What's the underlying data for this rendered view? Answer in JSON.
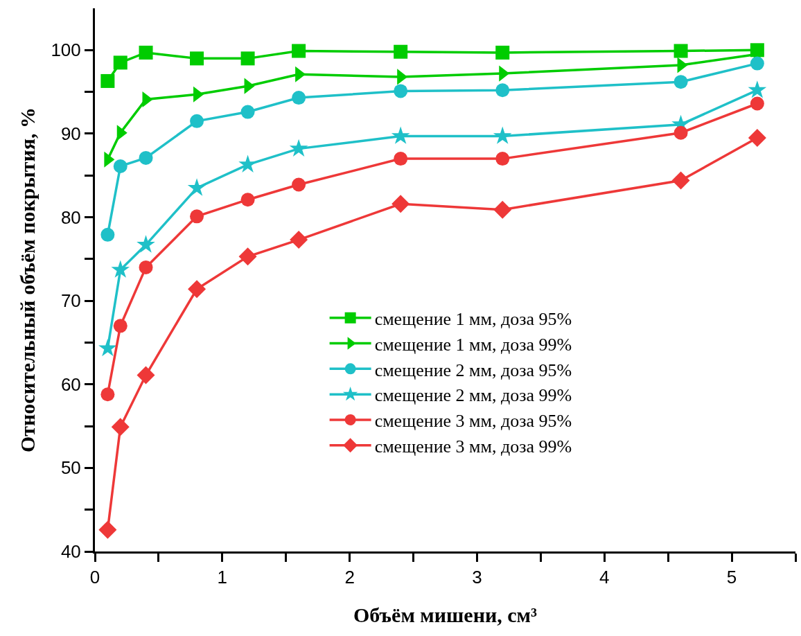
{
  "chart_data": {
    "type": "line",
    "xlabel": "Объём мишени, см³",
    "ylabel": "Относительный объём покрытия, %",
    "x": [
      0.1,
      0.2,
      0.4,
      0.8,
      1.2,
      1.6,
      2.4,
      3.2,
      4.6,
      5.2
    ],
    "series": [
      {
        "name": "смещение 1 мм, доза 95%",
        "color": "#00cc00",
        "marker": "square",
        "values": [
          96.3,
          98.5,
          99.7,
          99.0,
          99.0,
          99.9,
          99.8,
          99.7,
          99.9,
          100.0
        ]
      },
      {
        "name": "смещение 1 мм, доза 99%",
        "color": "#00cc00",
        "marker": "triangle",
        "values": [
          86.9,
          90.1,
          94.1,
          94.7,
          95.7,
          97.1,
          96.8,
          97.2,
          98.2,
          99.5
        ]
      },
      {
        "name": "смещение 2 мм, доза 95%",
        "color": "#1fc0c8",
        "marker": "circle",
        "values": [
          77.9,
          86.1,
          87.1,
          91.5,
          92.6,
          94.3,
          95.1,
          95.2,
          96.2,
          98.4
        ]
      },
      {
        "name": "смещение 2 мм, доза 99%",
        "color": "#1fc0c8",
        "marker": "star",
        "values": [
          64.3,
          73.7,
          76.7,
          83.5,
          86.3,
          88.2,
          89.7,
          89.7,
          91.1,
          95.2
        ]
      },
      {
        "name": "смещение 3 мм, доза 95%",
        "color": "#ee3838",
        "marker": "circle",
        "values": [
          58.8,
          67.0,
          74.0,
          80.1,
          82.1,
          83.9,
          87.0,
          87.0,
          90.1,
          93.6
        ]
      },
      {
        "name": "смещение 3 мм, доза 99%",
        "color": "#ee3838",
        "marker": "diamond",
        "values": [
          42.6,
          54.9,
          61.1,
          71.4,
          75.3,
          77.3,
          81.6,
          80.9,
          84.4,
          89.5
        ]
      }
    ],
    "xlim": [
      0,
      5.5
    ],
    "xticks": [
      0,
      {
        "value": 0.5,
        "label": null
      },
      1,
      {
        "value": 1.5,
        "label": null
      },
      2,
      {
        "value": 2.5,
        "label": null
      },
      3,
      {
        "value": 3.5,
        "label": null
      },
      4,
      {
        "value": 4.5,
        "label": null
      },
      5,
      {
        "value": 5.5,
        "label": null
      }
    ],
    "ylim": [
      40,
      105
    ],
    "yticks": [
      40,
      {
        "value": 45,
        "label": null
      },
      50,
      {
        "value": 55,
        "label": null
      },
      60,
      {
        "value": 65,
        "label": null
      },
      70,
      {
        "value": 75,
        "label": null
      },
      80,
      {
        "value": 85,
        "label": null
      },
      90,
      {
        "value": 95,
        "label": null
      },
      100
    ],
    "legend": "bottom right",
    "line_style": "solid"
  }
}
